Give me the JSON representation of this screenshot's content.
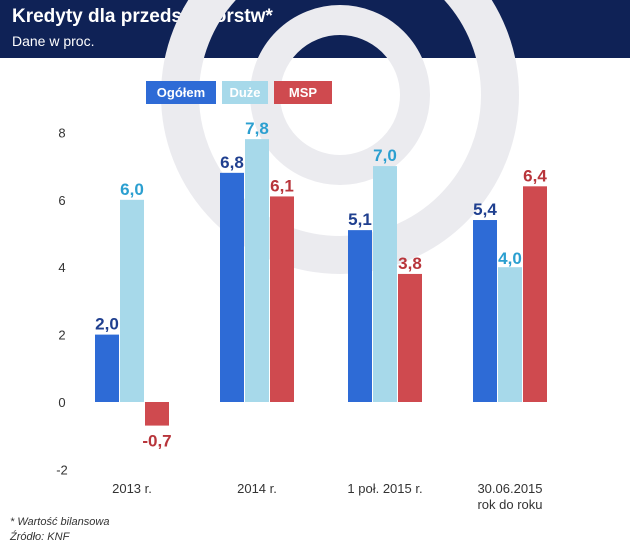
{
  "header": {
    "title": "Kredyty dla przedsiębiorstw*",
    "subtitle": "Dane w proc."
  },
  "footnote": {
    "note": "* Wartość bilansowa",
    "source": "Źródło: KNF"
  },
  "colors": {
    "header_bg": "#0f2256",
    "background_watermark": "#ebebef",
    "axis_text": "#333333"
  },
  "chart_data": {
    "type": "bar",
    "title": "Kredyty dla przedsiębiorstw*",
    "subtitle": "Dane w proc.",
    "categories": [
      [
        "2013 r."
      ],
      [
        "2014 r."
      ],
      [
        "1 poł. 2015 r."
      ],
      [
        "30.06.2015",
        "rok do roku"
      ]
    ],
    "series": [
      {
        "name": "Ogółem",
        "color": "#2e6bd6",
        "values": [
          2.0,
          6.8,
          5.1,
          5.4
        ],
        "labels": [
          "2,0",
          "6,8",
          "5,1",
          "5,4"
        ],
        "label_color": "#1f3f8f"
      },
      {
        "name": "Duże",
        "color": "#a7d9ea",
        "values": [
          6.0,
          7.8,
          7.0,
          4.0
        ],
        "labels": [
          "6,0",
          "7,8",
          "7,0",
          "4,0"
        ],
        "label_color": "#2b9fd0"
      },
      {
        "name": "MSP",
        "color": "#cf4a4f",
        "values": [
          -0.7,
          6.1,
          3.8,
          6.4
        ],
        "labels": [
          "-0,7",
          "6,1",
          "3,8",
          "6,4"
        ],
        "label_color": "#b8353b"
      }
    ],
    "yticks": [
      {
        "value": 8,
        "label": "8"
      },
      {
        "value": 6,
        "label": "6"
      },
      {
        "value": 4,
        "label": "4"
      },
      {
        "value": 2,
        "label": "2"
      },
      {
        "value": 0,
        "label": "0"
      },
      {
        "value": -2,
        "label": "-2"
      }
    ],
    "ylim": [
      -2,
      8
    ],
    "grid": false,
    "legend_position": "top-left"
  }
}
